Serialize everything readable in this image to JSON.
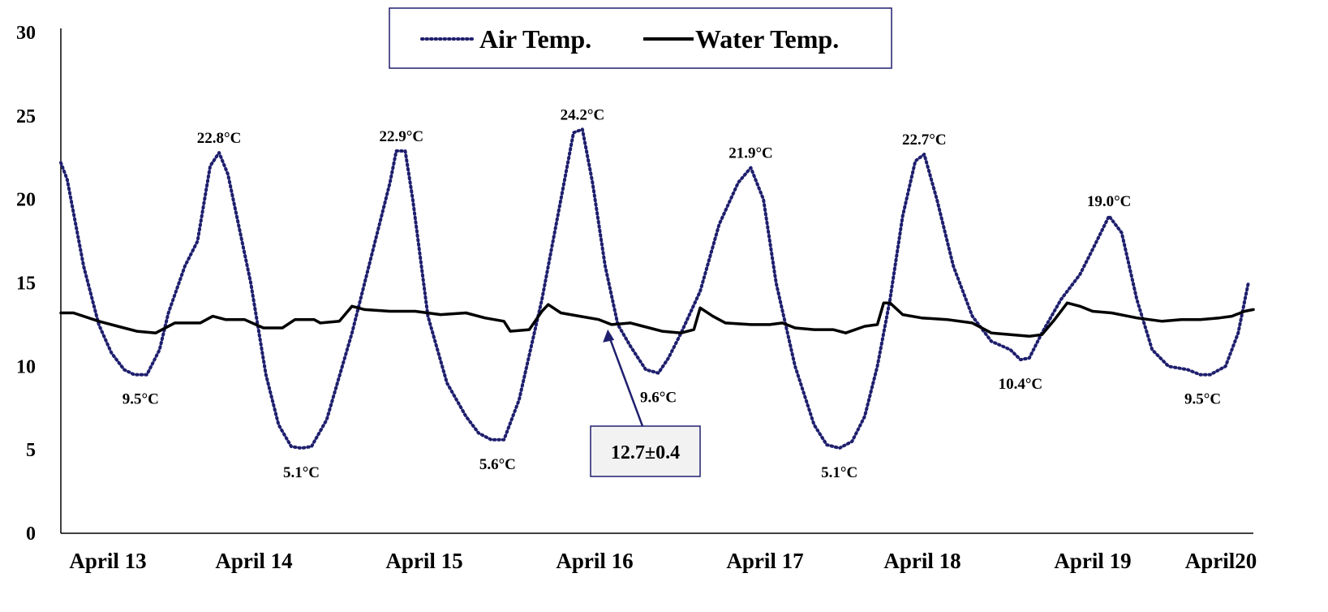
{
  "chart_data": {
    "type": "line",
    "title": "",
    "xlabel": "",
    "ylabel": "",
    "ylim": [
      0,
      30
    ],
    "yticks": [
      "0",
      "5",
      "10",
      "15",
      "20",
      "25",
      "30"
    ],
    "xticks": [
      "April 13",
      "April 14",
      "April 15",
      "April 16",
      "April 17",
      "April 18",
      "April 19",
      "April20"
    ],
    "legend": {
      "placement": "top-center",
      "entries": [
        {
          "name": "Air Temp.",
          "style": "dotted",
          "color": "#1f1f6e"
        },
        {
          "name": "Water Temp.",
          "style": "solid",
          "color": "#000000"
        }
      ]
    },
    "series": [
      {
        "name": "Air Temp.",
        "color": "#1f1f6e",
        "points": [
          [
            0.0,
            22.2
          ],
          [
            0.05,
            21.2
          ],
          [
            0.18,
            16.0
          ],
          [
            0.3,
            12.5
          ],
          [
            0.4,
            10.8
          ],
          [
            0.5,
            9.8
          ],
          [
            0.58,
            9.5
          ],
          [
            0.68,
            9.5
          ],
          [
            0.78,
            11.0
          ],
          [
            0.85,
            13.2
          ],
          [
            0.98,
            16.0
          ],
          [
            1.08,
            17.5
          ],
          [
            1.18,
            22.0
          ],
          [
            1.25,
            22.8
          ],
          [
            1.32,
            21.5
          ],
          [
            1.5,
            15.0
          ],
          [
            1.62,
            9.5
          ],
          [
            1.72,
            6.5
          ],
          [
            1.82,
            5.2
          ],
          [
            1.9,
            5.1
          ],
          [
            1.98,
            5.2
          ],
          [
            2.1,
            6.8
          ],
          [
            2.3,
            12.0
          ],
          [
            2.45,
            16.5
          ],
          [
            2.6,
            21.0
          ],
          [
            2.65,
            22.9
          ],
          [
            2.72,
            22.9
          ],
          [
            2.78,
            20.0
          ],
          [
            2.9,
            13.0
          ],
          [
            3.05,
            9.0
          ],
          [
            3.2,
            7.0
          ],
          [
            3.3,
            6.0
          ],
          [
            3.4,
            5.6
          ],
          [
            3.5,
            5.6
          ],
          [
            3.62,
            8.0
          ],
          [
            3.8,
            14.0
          ],
          [
            3.95,
            20.0
          ],
          [
            4.05,
            24.0
          ],
          [
            4.12,
            24.2
          ],
          [
            4.2,
            21.0
          ],
          [
            4.3,
            16.0
          ],
          [
            4.4,
            12.5
          ],
          [
            4.5,
            11.2
          ],
          [
            4.62,
            9.8
          ],
          [
            4.72,
            9.6
          ],
          [
            4.8,
            10.5
          ],
          [
            4.9,
            12.0
          ],
          [
            5.05,
            14.5
          ],
          [
            5.2,
            18.5
          ],
          [
            5.35,
            21.0
          ],
          [
            5.45,
            21.9
          ],
          [
            5.55,
            20.0
          ],
          [
            5.65,
            15.0
          ],
          [
            5.8,
            10.0
          ],
          [
            5.95,
            6.5
          ],
          [
            6.05,
            5.3
          ],
          [
            6.15,
            5.1
          ],
          [
            6.25,
            5.5
          ],
          [
            6.35,
            7.0
          ],
          [
            6.45,
            10.0
          ],
          [
            6.55,
            14.0
          ],
          [
            6.65,
            19.0
          ],
          [
            6.75,
            22.3
          ],
          [
            6.82,
            22.7
          ],
          [
            6.92,
            20.0
          ],
          [
            7.05,
            16.0
          ],
          [
            7.2,
            13.0
          ],
          [
            7.35,
            11.5
          ],
          [
            7.5,
            11.0
          ],
          [
            7.58,
            10.4
          ],
          [
            7.65,
            10.5
          ],
          [
            7.75,
            12.0
          ],
          [
            7.9,
            14.0
          ],
          [
            8.05,
            15.5
          ],
          [
            8.15,
            17.0
          ],
          [
            8.28,
            19.0
          ],
          [
            8.38,
            18.0
          ],
          [
            8.5,
            14.0
          ],
          [
            8.62,
            11.0
          ],
          [
            8.75,
            10.0
          ],
          [
            8.9,
            9.8
          ],
          [
            9.0,
            9.5
          ],
          [
            9.08,
            9.5
          ],
          [
            9.2,
            10.0
          ],
          [
            9.3,
            12.0
          ],
          [
            9.38,
            15.0
          ]
        ]
      },
      {
        "name": "Water Temp.",
        "color": "#000000",
        "points": [
          [
            0.0,
            13.2
          ],
          [
            0.1,
            13.2
          ],
          [
            0.3,
            12.7
          ],
          [
            0.45,
            12.4
          ],
          [
            0.6,
            12.1
          ],
          [
            0.75,
            12.0
          ],
          [
            0.9,
            12.6
          ],
          [
            1.1,
            12.6
          ],
          [
            1.2,
            13.0
          ],
          [
            1.3,
            12.8
          ],
          [
            1.45,
            12.8
          ],
          [
            1.6,
            12.3
          ],
          [
            1.75,
            12.3
          ],
          [
            1.85,
            12.8
          ],
          [
            2.0,
            12.8
          ],
          [
            2.05,
            12.6
          ],
          [
            2.2,
            12.7
          ],
          [
            2.3,
            13.6
          ],
          [
            2.4,
            13.4
          ],
          [
            2.6,
            13.3
          ],
          [
            2.8,
            13.3
          ],
          [
            3.0,
            13.1
          ],
          [
            3.2,
            13.2
          ],
          [
            3.35,
            12.9
          ],
          [
            3.5,
            12.7
          ],
          [
            3.55,
            12.1
          ],
          [
            3.7,
            12.2
          ],
          [
            3.8,
            13.3
          ],
          [
            3.85,
            13.7
          ],
          [
            3.95,
            13.2
          ],
          [
            4.1,
            13.0
          ],
          [
            4.25,
            12.8
          ],
          [
            4.35,
            12.5
          ],
          [
            4.5,
            12.6
          ],
          [
            4.6,
            12.4
          ],
          [
            4.75,
            12.1
          ],
          [
            4.9,
            12.0
          ],
          [
            5.0,
            12.2
          ],
          [
            5.05,
            13.5
          ],
          [
            5.15,
            13.0
          ],
          [
            5.25,
            12.6
          ],
          [
            5.45,
            12.5
          ],
          [
            5.6,
            12.5
          ],
          [
            5.7,
            12.6
          ],
          [
            5.8,
            12.3
          ],
          [
            5.95,
            12.2
          ],
          [
            6.1,
            12.2
          ],
          [
            6.2,
            12.0
          ],
          [
            6.35,
            12.4
          ],
          [
            6.45,
            12.5
          ],
          [
            6.5,
            13.8
          ],
          [
            6.55,
            13.8
          ],
          [
            6.65,
            13.1
          ],
          [
            6.8,
            12.9
          ],
          [
            7.0,
            12.8
          ],
          [
            7.2,
            12.6
          ],
          [
            7.35,
            12.0
          ],
          [
            7.5,
            11.9
          ],
          [
            7.65,
            11.8
          ],
          [
            7.75,
            11.9
          ],
          [
            7.85,
            12.8
          ],
          [
            7.95,
            13.8
          ],
          [
            8.05,
            13.6
          ],
          [
            8.15,
            13.3
          ],
          [
            8.3,
            13.2
          ],
          [
            8.5,
            12.9
          ],
          [
            8.7,
            12.7
          ],
          [
            8.85,
            12.8
          ],
          [
            9.0,
            12.8
          ],
          [
            9.15,
            12.9
          ],
          [
            9.25,
            13.0
          ],
          [
            9.35,
            13.3
          ],
          [
            9.42,
            13.4
          ]
        ]
      }
    ],
    "annotations": [
      {
        "text": "22.8°C",
        "x": 1.25,
        "y": 22.8,
        "pos": "above"
      },
      {
        "text": "22.9°C",
        "x": 2.69,
        "y": 22.9,
        "pos": "above"
      },
      {
        "text": "24.2°C",
        "x": 4.12,
        "y": 24.2,
        "pos": "above"
      },
      {
        "text": "21.9°C",
        "x": 5.45,
        "y": 21.9,
        "pos": "above"
      },
      {
        "text": "22.7°C",
        "x": 6.82,
        "y": 22.7,
        "pos": "above"
      },
      {
        "text": "19.0°C",
        "x": 8.28,
        "y": 19.0,
        "pos": "above"
      },
      {
        "text": "9.5°C",
        "x": 0.63,
        "y": 9.5,
        "pos": "below"
      },
      {
        "text": "5.1°C",
        "x": 1.9,
        "y": 5.1,
        "pos": "below"
      },
      {
        "text": "5.6°C",
        "x": 3.45,
        "y": 5.6,
        "pos": "below"
      },
      {
        "text": "9.6°C",
        "x": 4.72,
        "y": 9.6,
        "pos": "below"
      },
      {
        "text": "5.1°C",
        "x": 6.15,
        "y": 5.1,
        "pos": "below"
      },
      {
        "text": "10.4°C",
        "x": 7.58,
        "y": 10.4,
        "pos": "below"
      },
      {
        "text": "9.5°C",
        "x": 9.02,
        "y": 9.5,
        "pos": "below"
      }
    ],
    "callout": {
      "text": "12.7±0.4",
      "points_to_x": 4.32,
      "points_to_y": 12.6
    }
  }
}
